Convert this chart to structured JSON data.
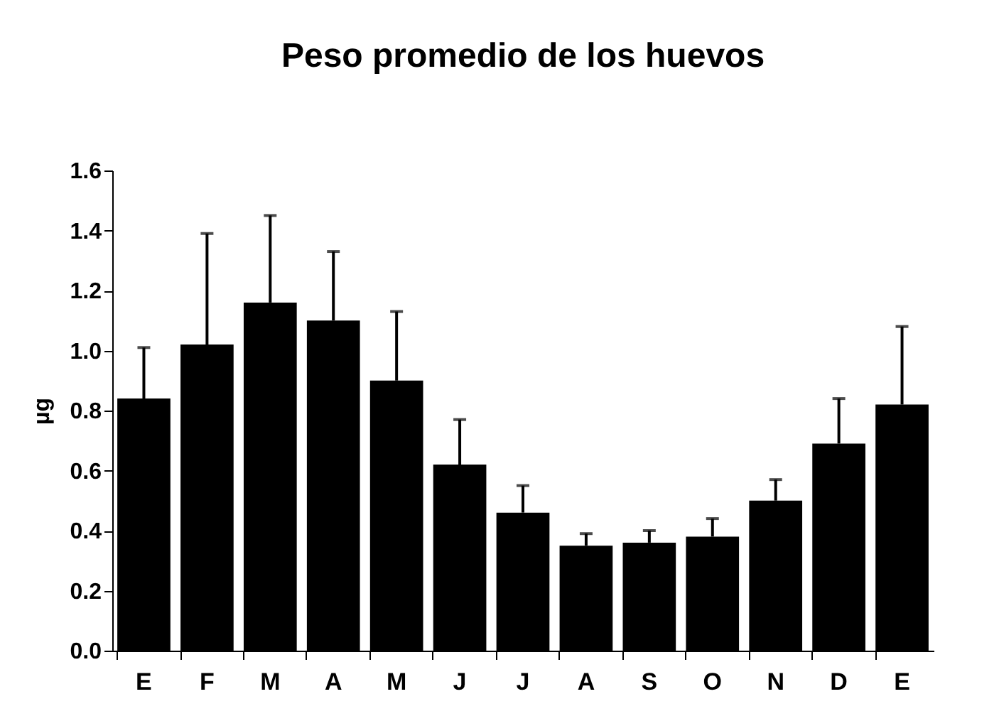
{
  "chart_data": {
    "type": "bar",
    "title": "Peso promedio de los huevos",
    "ylabel": "µg",
    "categories": [
      "E",
      "F",
      "M",
      "A",
      "M",
      "J",
      "J",
      "A",
      "S",
      "O",
      "N",
      "D",
      "E"
    ],
    "values": [
      0.84,
      1.02,
      1.16,
      1.1,
      0.9,
      0.62,
      0.46,
      0.35,
      0.36,
      0.38,
      0.5,
      0.69,
      0.82
    ],
    "errors": [
      [
        0.84,
        1.01
      ],
      [
        1.02,
        1.39
      ],
      [
        1.16,
        1.45
      ],
      [
        1.1,
        1.33
      ],
      [
        0.9,
        1.13
      ],
      [
        0.62,
        0.77
      ],
      [
        0.46,
        0.55
      ],
      [
        0.35,
        0.39
      ],
      [
        0.36,
        0.4
      ],
      [
        0.38,
        0.44
      ],
      [
        0.5,
        0.57
      ],
      [
        0.69,
        0.84
      ],
      [
        0.82,
        1.08
      ]
    ],
    "color": "#000000",
    "ylim": [
      0,
      1.6
    ],
    "yticks": [
      {
        "value": 0,
        "label": "0.0"
      },
      {
        "value": 0.2,
        "label": "0.2"
      },
      {
        "value": 0.4,
        "label": "0.4"
      },
      {
        "value": 0.6,
        "label": "0.6"
      },
      {
        "value": 0.8,
        "label": "0.8"
      },
      {
        "value": 1.0,
        "label": "1.0"
      },
      {
        "value": 1.2,
        "label": "1.2"
      },
      {
        "value": 1.4,
        "label": "1.4"
      },
      {
        "value": 1.6,
        "label": "1.6"
      }
    ],
    "grid": false
  }
}
